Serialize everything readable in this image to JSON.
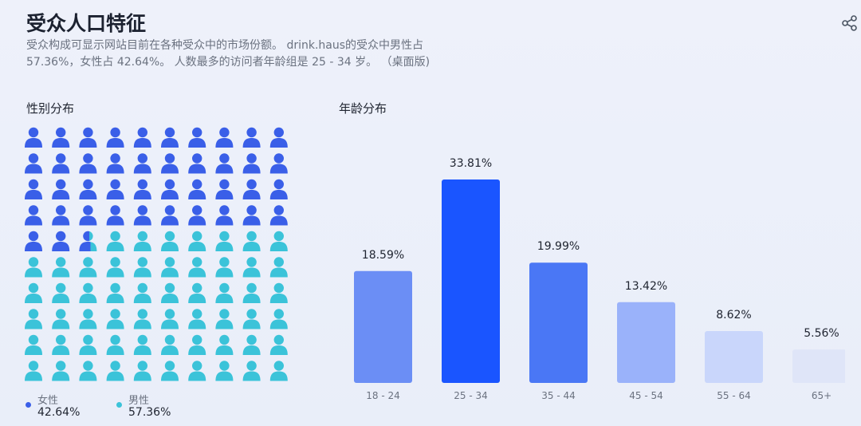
{
  "header": {
    "title": "受众人口特征",
    "description_line1": "受众构成可显示网站目前在各种受众中的市场份额。 drink.haus的受众中男性占",
    "description_line2": "57.36%，女性占 42.64%。 人数最多的访问者年龄组是 25 - 34 岁。 （桌面版)"
  },
  "share_icon": "share-icon",
  "colors": {
    "female": "#3a5fe8",
    "male": "#3bc3d9",
    "bars": [
      "#6b8ef5",
      "#1a55ff",
      "#4a77f5",
      "#9ab2fa",
      "#c9d6fb",
      "#dfe5f8"
    ]
  },
  "gender": {
    "label": "性别分布",
    "female_label": "女性",
    "female_value": "42.64%",
    "male_label": "男性",
    "male_value": "57.36%",
    "female_share": 0.4264
  },
  "age": {
    "label": "年龄分布"
  },
  "chart_data": {
    "type": "bar",
    "categories": [
      "18 - 24",
      "25 - 34",
      "35 - 44",
      "45 - 54",
      "55 - 64",
      "65+"
    ],
    "values": [
      18.59,
      33.81,
      19.99,
      13.42,
      8.62,
      5.56
    ],
    "data_labels": [
      "18.59%",
      "33.81%",
      "19.99%",
      "13.42%",
      "8.62%",
      "5.56%"
    ],
    "ylim": [
      0,
      33.81
    ]
  }
}
